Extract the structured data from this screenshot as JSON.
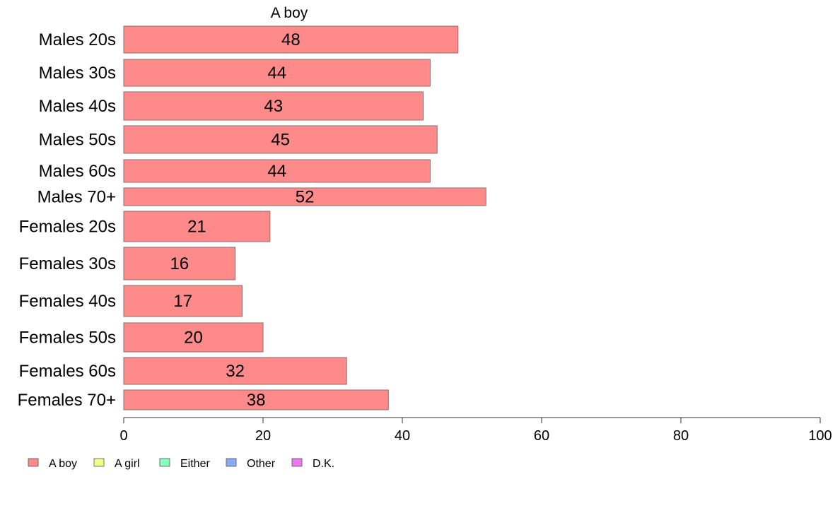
{
  "chart_data": {
    "type": "bar",
    "orientation": "horizontal",
    "title": "A boy",
    "xlabel": "",
    "ylabel": "",
    "xlim": [
      0,
      100
    ],
    "x_ticks": [
      0,
      20,
      40,
      60,
      80,
      100
    ],
    "grid": false,
    "legend_position": "bottom-left",
    "categories": [
      "Males 20s",
      "Males 30s",
      "Males 40s",
      "Males 50s",
      "Males 60s",
      "Males 70+",
      "Females 20s",
      "Females 30s",
      "Females 40s",
      "Females 50s",
      "Females 60s",
      "Females 70+"
    ],
    "series": [
      {
        "name": "A boy",
        "color": "#ff8a8a",
        "values": [
          48,
          44,
          43,
          45,
          44,
          52,
          21,
          16,
          17,
          20,
          32,
          38
        ]
      }
    ],
    "legend": [
      {
        "label": "A boy",
        "color": "#ff8a8a"
      },
      {
        "label": "A girl",
        "color": "#eeff88"
      },
      {
        "label": "Either",
        "color": "#88ffbb"
      },
      {
        "label": "Other",
        "color": "#88aaee"
      },
      {
        "label": "D.K.",
        "color": "#ee77ee"
      }
    ]
  }
}
